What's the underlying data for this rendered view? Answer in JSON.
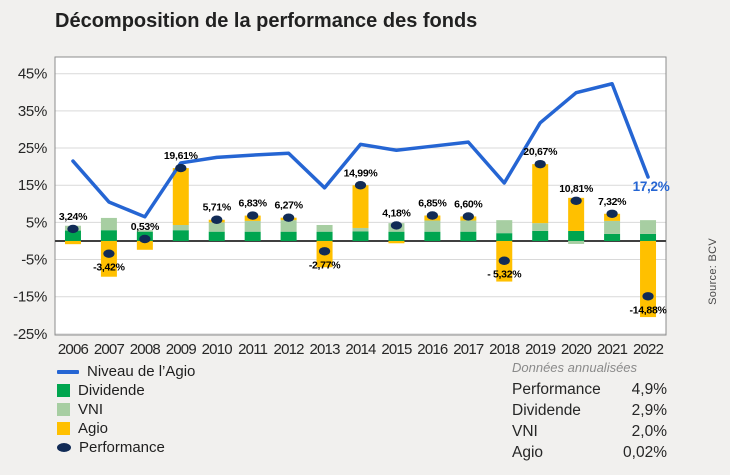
{
  "title": "Décomposition de la performance des fonds",
  "source": "Source: BCV",
  "legend": {
    "items": [
      {
        "label": "Niveau de l’Agio",
        "swatch": "line",
        "color": "#2565D3"
      },
      {
        "label": "Dividende",
        "swatch": "square",
        "color": "#00A54F"
      },
      {
        "label": "VNI",
        "swatch": "square",
        "color": "#A7CEA2"
      },
      {
        "label": "Agio",
        "swatch": "square",
        "color": "#FFC000"
      },
      {
        "label": "Performance",
        "swatch": "ellipse",
        "color": "#112B56"
      }
    ]
  },
  "annualized": {
    "title": "Données annualisées",
    "rows": [
      {
        "label": "Performance",
        "value": "4,9%"
      },
      {
        "label": "Dividende",
        "value": "2,9%"
      },
      {
        "label": "VNI",
        "value": "2,0%"
      },
      {
        "label": "Agio",
        "value": "0,02%"
      }
    ]
  },
  "chart_data": {
    "type": "combo",
    "title": "Décomposition de la performance des fonds",
    "categories": [
      "2006",
      "2007",
      "2008",
      "2009",
      "2010",
      "2011",
      "2012",
      "2013",
      "2014",
      "2015",
      "2016",
      "2017",
      "2018",
      "2019",
      "2020",
      "2021",
      "2022"
    ],
    "ylim": [
      -25.3,
      49.5
    ],
    "yticks": [
      45,
      35,
      25,
      15,
      5,
      -5,
      -15,
      -25
    ],
    "ytick_labels": [
      "45%",
      "35%",
      "25%",
      "15%",
      "5%",
      "-5%",
      "-15%",
      "-25%"
    ],
    "grid": true,
    "colors": {
      "dividende": "#00A54F",
      "vni": "#A7CEA2",
      "agio": "#FFC000",
      "performance_dot": "#112B56",
      "line": "#2565D3",
      "gridline": "#D9D9D9",
      "zero_line": "#404040",
      "plot_border": "#8C8C8C"
    },
    "series": [
      {
        "name": "Dividende",
        "type": "bar",
        "values": [
          2.8,
          2.9,
          2.5,
          2.9,
          2.5,
          2.5,
          2.5,
          2.5,
          2.6,
          2.5,
          2.5,
          2.5,
          2.1,
          2.7,
          2.7,
          1.9,
          1.9
        ]
      },
      {
        "name": "VNI",
        "type": "bar",
        "values": [
          1.3,
          3.3,
          0.4,
          1.4,
          2.5,
          2.9,
          3.1,
          1.8,
          0.9,
          2.3,
          3.0,
          3.0,
          3.5,
          2.1,
          -0.8,
          3.5,
          3.7
        ]
      },
      {
        "name": "Agio",
        "type": "bar",
        "values": [
          -0.86,
          -9.62,
          -2.37,
          15.31,
          0.71,
          1.43,
          0.67,
          -7.07,
          11.49,
          -0.62,
          1.35,
          1.1,
          -10.92,
          15.87,
          8.91,
          1.92,
          -20.48
        ]
      },
      {
        "name": "Performance",
        "type": "point",
        "values": [
          3.24,
          -3.42,
          0.53,
          19.61,
          5.71,
          6.83,
          6.27,
          -2.77,
          14.99,
          4.18,
          6.85,
          6.6,
          -5.32,
          20.67,
          10.81,
          7.32,
          -14.88
        ],
        "labels": [
          "3,24%",
          "-3,42%",
          "0,53%",
          "19,61%",
          "5,71%",
          "6,83%",
          "6,27%",
          "-2,77%",
          "14,99%",
          "4,18%",
          "6,85%",
          "6,60%",
          "- 5,32%",
          "20,67%",
          "10,81%",
          "7,32%",
          "-14,88%"
        ]
      },
      {
        "name": "Niveau de l’Agio",
        "type": "line",
        "values": [
          21.5,
          10.5,
          6.5,
          21.0,
          22.5,
          23.1,
          23.6,
          14.3,
          26.0,
          24.4,
          25.5,
          26.6,
          15.6,
          31.8,
          39.9,
          42.3,
          17.2
        ],
        "end_label": "17,2%"
      }
    ],
    "legend_position": "bottom-left"
  }
}
